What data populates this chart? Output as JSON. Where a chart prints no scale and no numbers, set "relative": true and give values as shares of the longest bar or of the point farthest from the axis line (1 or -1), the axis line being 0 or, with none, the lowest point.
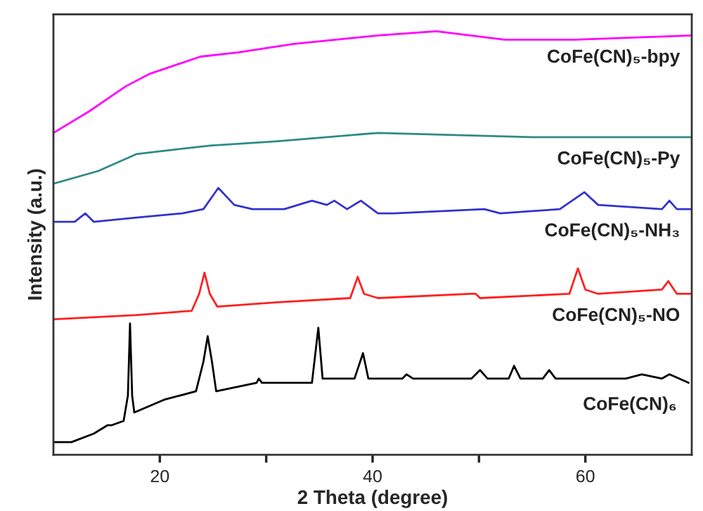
{
  "chart_data": {
    "type": "line",
    "relative": true,
    "xlabel": "2 Theta (degree)",
    "ylabel": "Intensity (a.u.)",
    "xlim": [
      10,
      70
    ],
    "xticks": [
      20,
      {
        "value": 30,
        "label": null
      },
      40,
      {
        "value": 50,
        "label": null
      },
      60
    ],
    "tick_labels": "x",
    "grid": false,
    "legend": false,
    "marker": "none",
    "line_style": "solid",
    "series": [
      {
        "name": "CoFe(CN)₅-bpy",
        "color": "#ff00ff",
        "x": [
          10,
          13.3,
          16.8,
          19.1,
          23.8,
          27.4,
          32.6,
          40.5,
          46,
          52.4,
          59,
          70
        ],
        "values": [
          0.76,
          0.81,
          0.87,
          0.9,
          0.94,
          0.95,
          0.97,
          0.99,
          1.0,
          0.98,
          0.98,
          0.99
        ]
      },
      {
        "name": "CoFe(CN)₅-Py",
        "color": "#2e8b84",
        "x": [
          10,
          14.2,
          17.8,
          21.2,
          24.7,
          30.9,
          40.5,
          55,
          70
        ],
        "values": [
          0.64,
          0.67,
          0.71,
          0.72,
          0.73,
          0.74,
          0.76,
          0.75,
          0.75
        ]
      },
      {
        "name": "CoFe(CN)₅-NH₃",
        "color": "#3333cc",
        "x": [
          10,
          12,
          13,
          13.8,
          17.8,
          22.1,
          24.1,
          25.5,
          27,
          28.7,
          31.7,
          34.3,
          35.7,
          36.4,
          37.6,
          38.9,
          40.5,
          42,
          50.5,
          52,
          57.6,
          59.9,
          61.2,
          67.2,
          67.9,
          68.6,
          70
        ],
        "values": [
          0.55,
          0.55,
          0.57,
          0.55,
          0.56,
          0.57,
          0.58,
          0.63,
          0.59,
          0.58,
          0.58,
          0.6,
          0.59,
          0.6,
          0.58,
          0.6,
          0.57,
          0.57,
          0.58,
          0.57,
          0.58,
          0.62,
          0.59,
          0.58,
          0.6,
          0.58,
          0.58
        ]
      },
      {
        "name": "CoFe(CN)₅-NO",
        "color": "#ff2020",
        "x": [
          10,
          17.8,
          23,
          23.7,
          24.2,
          24.7,
          25.4,
          30.9,
          37.9,
          38.6,
          39.2,
          40.5,
          49.3,
          49.7,
          50.1,
          58.5,
          59.3,
          60,
          61.2,
          67.2,
          67.8,
          68.6,
          70
        ],
        "values": [
          0.32,
          0.33,
          0.34,
          0.38,
          0.43,
          0.38,
          0.35,
          0.36,
          0.37,
          0.42,
          0.38,
          0.37,
          0.38,
          0.38,
          0.37,
          0.38,
          0.44,
          0.39,
          0.38,
          0.39,
          0.41,
          0.38,
          0.38
        ]
      },
      {
        "name": "CoFe(CN)₆",
        "color": "#000000",
        "x": [
          10,
          11.7,
          13.8,
          15.1,
          15.5,
          16.6,
          17,
          17.2,
          17.4,
          17.6,
          20.4,
          23.4,
          24.1,
          24.5,
          24.9,
          25.3,
          29.1,
          29.3,
          29.6,
          34.3,
          34.9,
          35.3,
          38.3,
          39.1,
          39.6,
          40.5,
          42.8,
          43.2,
          43.8,
          49.3,
          50.1,
          50.8,
          52.8,
          53.3,
          53.9,
          56,
          56.6,
          57.2,
          63.8,
          65.3,
          67.2,
          67.9,
          69.7
        ],
        "values": [
          0.03,
          0.03,
          0.05,
          0.07,
          0.07,
          0.08,
          0.14,
          0.31,
          0.14,
          0.1,
          0.13,
          0.15,
          0.22,
          0.28,
          0.22,
          0.15,
          0.17,
          0.18,
          0.17,
          0.17,
          0.3,
          0.18,
          0.18,
          0.24,
          0.18,
          0.18,
          0.18,
          0.19,
          0.18,
          0.18,
          0.2,
          0.18,
          0.18,
          0.21,
          0.18,
          0.18,
          0.2,
          0.18,
          0.18,
          0.19,
          0.18,
          0.19,
          0.17
        ]
      }
    ]
  }
}
